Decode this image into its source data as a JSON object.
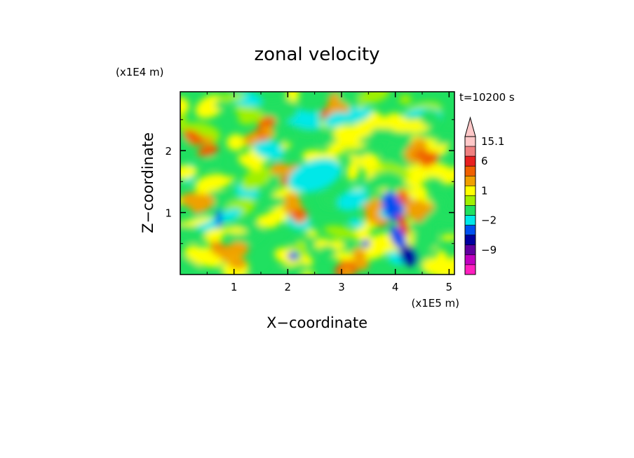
{
  "chart_data": {
    "type": "heatmap",
    "title": "zonal velocity",
    "xlabel": "X−coordinate",
    "ylabel": "Z−coordinate",
    "x_unit": "(x1E5 m)",
    "y_unit": "(x1E4 m)",
    "time_label": "t=10200 s",
    "xlim": [
      0,
      5.1
    ],
    "ylim": [
      0,
      2.95
    ],
    "x_ticks": [
      {
        "value": 1,
        "label": "1"
      },
      {
        "value": 2,
        "label": "2"
      },
      {
        "value": 3,
        "label": "3"
      },
      {
        "value": 4,
        "label": "4"
      },
      {
        "value": 5,
        "label": "5"
      }
    ],
    "y_ticks": [
      {
        "value": 1,
        "label": "1"
      },
      {
        "value": 2,
        "label": "2"
      }
    ],
    "colorbar": {
      "levels_top_to_bottom": [
        {
          "color": "#ffc8c8",
          "value": 15.1
        },
        {
          "color": "#f08080",
          "value": null
        },
        {
          "color": "#e82020",
          "value": 6
        },
        {
          "color": "#f06000",
          "value": null
        },
        {
          "color": "#f0a000",
          "value": null
        },
        {
          "color": "#ffff00",
          "value": 1
        },
        {
          "color": "#a0f000",
          "value": null
        },
        {
          "color": "#20e060",
          "value": null
        },
        {
          "color": "#00e8e8",
          "value": -2
        },
        {
          "color": "#0050f0",
          "value": null
        },
        {
          "color": "#0000a0",
          "value": null
        },
        {
          "color": "#6000a0",
          "value": -9
        },
        {
          "color": "#c000c0",
          "value": null
        },
        {
          "color": "#ff20c0",
          "value": null
        }
      ],
      "labels": [
        "15.1",
        "6",
        "1",
        "−2",
        "−9"
      ],
      "extend": "max"
    },
    "dominant_field": "weak values (green/yellow, about -2 to 1) dominate; orange patches near x 0.2-0.6 and 2.0-2.4; strong negative (blue) and positive (orange/red) jet near x 4.0-4.4 below z 1.5"
  }
}
